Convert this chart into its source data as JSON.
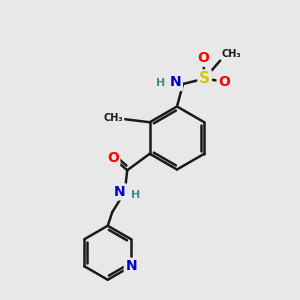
{
  "bg_color": "#e8e8e8",
  "bond_color": "#1a1a1a",
  "bond_width": 1.8,
  "atom_colors": {
    "C": "#1a1a1a",
    "N": "#0000cd",
    "O": "#ff0000",
    "S": "#cccc00",
    "H": "#4a8a8a"
  },
  "font_size_atom": 10,
  "font_size_H": 8,
  "font_size_methyl": 7
}
